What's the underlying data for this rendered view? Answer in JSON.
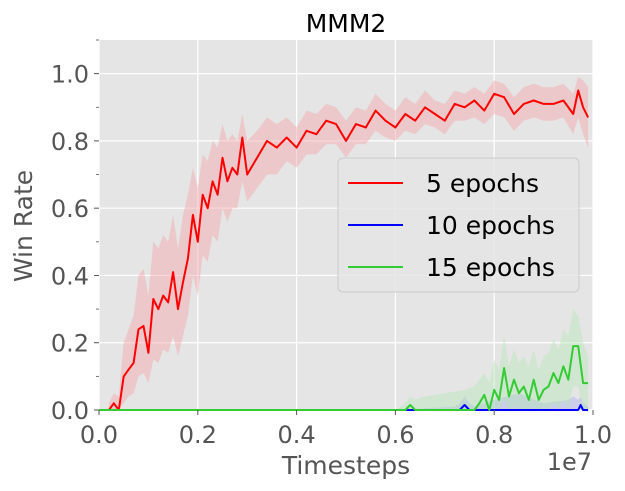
{
  "chart_data": {
    "type": "line",
    "title": "MMM2",
    "xlabel": "Timesteps",
    "ylabel": "Win Rate",
    "x_offset_label": "1e7",
    "xlim": [
      0.0,
      1.0
    ],
    "ylim": [
      0.0,
      1.1
    ],
    "xticks": [
      "0.0",
      "0.2",
      "0.4",
      "0.6",
      "0.8",
      "1.0"
    ],
    "yticks": [
      "0.0",
      "0.2",
      "0.4",
      "0.6",
      "0.8",
      "1.0"
    ],
    "grid": true,
    "background": "#e5e5e5",
    "legend_position": "right",
    "series": [
      {
        "name": "5 epochs",
        "color": "#ff0000",
        "band_color": "#f4a3a8",
        "x": [
          0.02,
          0.03,
          0.04,
          0.05,
          0.06,
          0.07,
          0.08,
          0.09,
          0.1,
          0.11,
          0.12,
          0.13,
          0.14,
          0.15,
          0.16,
          0.17,
          0.18,
          0.19,
          0.2,
          0.21,
          0.22,
          0.23,
          0.24,
          0.25,
          0.26,
          0.27,
          0.28,
          0.29,
          0.3,
          0.32,
          0.34,
          0.36,
          0.38,
          0.4,
          0.42,
          0.44,
          0.46,
          0.48,
          0.5,
          0.52,
          0.54,
          0.56,
          0.58,
          0.6,
          0.62,
          0.64,
          0.66,
          0.68,
          0.7,
          0.72,
          0.74,
          0.76,
          0.78,
          0.8,
          0.82,
          0.84,
          0.86,
          0.88,
          0.9,
          0.92,
          0.94,
          0.96,
          0.97,
          0.98,
          0.99
        ],
        "y": [
          0.0,
          0.02,
          0.0,
          0.1,
          0.12,
          0.14,
          0.24,
          0.25,
          0.17,
          0.33,
          0.3,
          0.34,
          0.32,
          0.41,
          0.3,
          0.38,
          0.45,
          0.58,
          0.5,
          0.64,
          0.6,
          0.68,
          0.64,
          0.75,
          0.68,
          0.72,
          0.7,
          0.81,
          0.7,
          0.75,
          0.8,
          0.78,
          0.81,
          0.78,
          0.83,
          0.82,
          0.86,
          0.85,
          0.8,
          0.85,
          0.84,
          0.89,
          0.86,
          0.84,
          0.88,
          0.86,
          0.9,
          0.88,
          0.86,
          0.91,
          0.9,
          0.92,
          0.89,
          0.94,
          0.93,
          0.88,
          0.91,
          0.92,
          0.91,
          0.91,
          0.92,
          0.88,
          0.95,
          0.9,
          0.87
        ],
        "lower": [
          0.0,
          0.0,
          0.0,
          0.02,
          0.04,
          0.05,
          0.1,
          0.11,
          0.08,
          0.15,
          0.14,
          0.18,
          0.17,
          0.22,
          0.16,
          0.22,
          0.28,
          0.4,
          0.34,
          0.46,
          0.44,
          0.52,
          0.5,
          0.6,
          0.56,
          0.6,
          0.6,
          0.68,
          0.62,
          0.66,
          0.7,
          0.7,
          0.74,
          0.72,
          0.76,
          0.76,
          0.79,
          0.79,
          0.75,
          0.79,
          0.79,
          0.83,
          0.81,
          0.8,
          0.83,
          0.82,
          0.85,
          0.84,
          0.82,
          0.86,
          0.86,
          0.87,
          0.85,
          0.88,
          0.87,
          0.83,
          0.86,
          0.87,
          0.86,
          0.86,
          0.87,
          0.82,
          0.87,
          0.82,
          0.78
        ],
        "upper": [
          0.02,
          0.05,
          0.04,
          0.2,
          0.24,
          0.28,
          0.4,
          0.42,
          0.34,
          0.5,
          0.48,
          0.52,
          0.5,
          0.58,
          0.48,
          0.58,
          0.64,
          0.72,
          0.66,
          0.76,
          0.74,
          0.8,
          0.78,
          0.85,
          0.8,
          0.82,
          0.8,
          0.88,
          0.8,
          0.83,
          0.87,
          0.85,
          0.87,
          0.84,
          0.89,
          0.88,
          0.91,
          0.9,
          0.86,
          0.9,
          0.89,
          0.94,
          0.91,
          0.89,
          0.93,
          0.91,
          0.95,
          0.92,
          0.91,
          0.95,
          0.94,
          0.96,
          0.94,
          0.98,
          0.97,
          0.93,
          0.96,
          0.97,
          0.96,
          0.96,
          0.97,
          0.94,
          0.99,
          0.98,
          0.96
        ]
      },
      {
        "name": "10 epochs",
        "color": "#0000ff",
        "band_color": "#aab0f0",
        "x": [
          0.0,
          0.2,
          0.4,
          0.6,
          0.72,
          0.73,
          0.74,
          0.75,
          0.76,
          0.8,
          0.85,
          0.9,
          0.95,
          0.96,
          0.97,
          0.975,
          0.98,
          0.99
        ],
        "y": [
          0.0,
          0.0,
          0.0,
          0.0,
          0.0,
          0.0,
          0.015,
          0.0,
          0.0,
          0.0,
          0.0,
          0.0,
          0.0,
          0.0,
          0.0,
          0.015,
          0.0,
          0.0
        ],
        "lower": [
          0.0,
          0.0,
          0.0,
          0.0,
          0.0,
          0.0,
          0.0,
          0.0,
          0.0,
          0.0,
          0.0,
          0.0,
          0.0,
          0.0,
          0.0,
          0.0,
          0.0,
          0.0
        ],
        "upper": [
          0.0,
          0.0,
          0.0,
          0.0,
          0.01,
          0.02,
          0.04,
          0.02,
          0.01,
          0.03,
          0.05,
          0.02,
          0.03,
          0.04,
          0.03,
          0.04,
          0.02,
          0.01
        ]
      },
      {
        "name": "15 epochs",
        "color": "#33cc33",
        "band_color": "#b5e6b5",
        "x": [
          0.0,
          0.2,
          0.4,
          0.6,
          0.62,
          0.63,
          0.64,
          0.66,
          0.7,
          0.74,
          0.76,
          0.77,
          0.78,
          0.79,
          0.8,
          0.81,
          0.82,
          0.83,
          0.84,
          0.85,
          0.86,
          0.87,
          0.88,
          0.89,
          0.9,
          0.91,
          0.92,
          0.93,
          0.94,
          0.95,
          0.96,
          0.97,
          0.98,
          0.99
        ],
        "y": [
          0.0,
          0.0,
          0.0,
          0.0,
          0.0,
          0.015,
          0.0,
          0.0,
          0.0,
          0.0,
          0.0,
          0.02,
          0.045,
          0.0,
          0.06,
          0.03,
          0.125,
          0.04,
          0.09,
          0.05,
          0.07,
          0.03,
          0.09,
          0.03,
          0.06,
          0.07,
          0.11,
          0.08,
          0.13,
          0.09,
          0.19,
          0.19,
          0.08,
          0.08
        ],
        "lower": [
          0.0,
          0.0,
          0.0,
          0.0,
          0.0,
          0.0,
          0.0,
          0.0,
          0.0,
          0.0,
          0.0,
          0.0,
          0.0,
          0.0,
          0.0,
          0.0,
          0.03,
          0.0,
          0.01,
          0.0,
          0.0,
          0.0,
          0.01,
          0.0,
          0.0,
          0.0,
          0.02,
          0.0,
          0.03,
          0.0,
          0.07,
          0.07,
          0.0,
          0.0
        ],
        "upper": [
          0.0,
          0.0,
          0.0,
          0.0,
          0.02,
          0.04,
          0.03,
          0.04,
          0.05,
          0.06,
          0.07,
          0.09,
          0.11,
          0.08,
          0.15,
          0.12,
          0.22,
          0.13,
          0.18,
          0.14,
          0.16,
          0.13,
          0.18,
          0.12,
          0.16,
          0.17,
          0.21,
          0.18,
          0.24,
          0.22,
          0.3,
          0.28,
          0.2,
          0.16
        ]
      }
    ]
  }
}
